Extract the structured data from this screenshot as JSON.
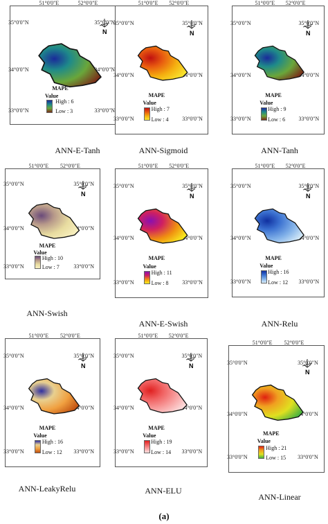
{
  "axis_labels": {
    "lon1": "51°0'0\"E",
    "lon2": "52°0'0\"E",
    "lat35": "35°0'0\"N",
    "lat34": "34°0'0\"N",
    "lat33": "33°0'0\"N"
  },
  "north_label": "N",
  "legend_title": "Value",
  "map_title": "MAPE",
  "panels": [
    {
      "caption": "ANN-E-Tanh",
      "high": "High : 6",
      "low": "Low : 3",
      "colors": [
        "#1a2a9a",
        "#1e8a8a",
        "#6aa63a",
        "#7a2a18"
      ]
    },
    {
      "caption": "ANN-Sigmoid",
      "high": "High : 7",
      "low": "Low : 4",
      "colors": [
        "#c01010",
        "#e85a10",
        "#f5b010",
        "#f8e830"
      ]
    },
    {
      "caption": "ANN-Tanh",
      "high": "High : 9",
      "low": "Low : 6",
      "colors": [
        "#1a2a9a",
        "#1e8a8a",
        "#6aa63a",
        "#7a2a18"
      ]
    },
    {
      "caption": "ANN-Swish",
      "high": "High : 10",
      "low": "Low : 7",
      "colors": [
        "#6a4a7a",
        "#b89a8a",
        "#e8dca0",
        "#f8f0c0"
      ]
    },
    {
      "caption": "ANN-E-Swish",
      "high": "High : 11",
      "low": "Low : 8",
      "colors": [
        "#8a10b0",
        "#d02060",
        "#f09010",
        "#f8f020"
      ]
    },
    {
      "caption": "ANN-Relu",
      "high": "High : 16",
      "low": "Low : 12",
      "colors": [
        "#1030a0",
        "#3a70d0",
        "#80b0e8",
        "#d8ecf8"
      ]
    },
    {
      "caption": "ANN-LeakyRelu",
      "high": "High : 16",
      "low": "Low : 12",
      "colors": [
        "#3030a0",
        "#e8d090",
        "#f0a040",
        "#c05010"
      ]
    },
    {
      "caption": "ANN-ELU",
      "high": "High : 19",
      "low": "Low : 14",
      "colors": [
        "#e02020",
        "#f06060",
        "#f8a0a0",
        "#fce0e0"
      ]
    },
    {
      "caption": "ANN-Linear",
      "high": "High : 21",
      "low": "Low : 15",
      "colors": [
        "#e02010",
        "#f0a020",
        "#e0e020",
        "#40b040"
      ]
    }
  ],
  "subcaption": "(a)"
}
